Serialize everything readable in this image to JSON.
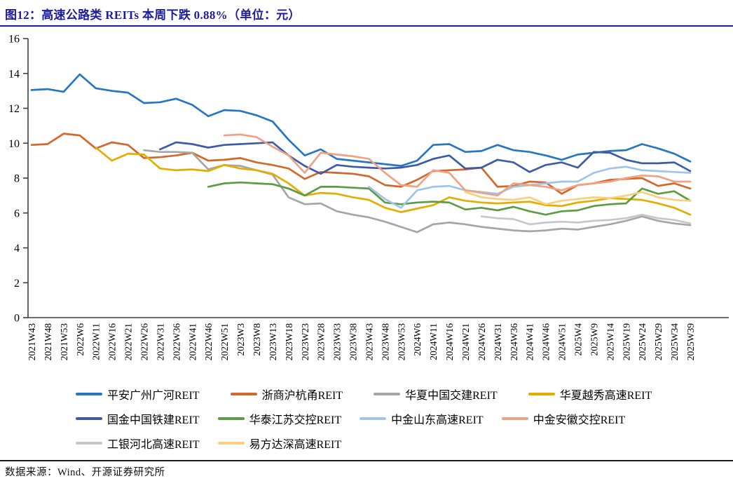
{
  "figure": {
    "title": "图12：高速公路类 REITs 本周下跌 0.88%（单位：元）",
    "source": "数据来源：Wind、开源证券研究所"
  },
  "colors": {
    "title_accent": "#1c1c9e",
    "axis": "#3f3f3f",
    "footer_rule": "#1a1a1a"
  },
  "chart_data": {
    "type": "line",
    "title": "高速公路类REITs周收盘价",
    "unit": "元",
    "ylim": [
      0,
      16
    ],
    "ytick_step": 2,
    "grid": false,
    "legend_position": "bottom",
    "legend_rows": [
      [
        0,
        1,
        2,
        3
      ],
      [
        4,
        5,
        6,
        7
      ],
      [
        8,
        9
      ]
    ],
    "categories": [
      "2021W43",
      "2021W48",
      "2021W53",
      "2022W6",
      "2022W11",
      "2022W16",
      "2022W21",
      "2022W26",
      "2022W31",
      "2022W36",
      "2022W41",
      "2022W46",
      "2022W51",
      "2023W3",
      "2023W8",
      "2023W13",
      "2023W18",
      "2023W23",
      "2023W28",
      "2023W33",
      "2023W38",
      "2023W43",
      "2023W48",
      "2023W53",
      "2024W6",
      "2024W11",
      "2024W16",
      "2024W21",
      "2024W26",
      "2024W31",
      "2024W36",
      "2024W41",
      "2024W46",
      "2024W51",
      "2025W4",
      "2025W9",
      "2025W14",
      "2025W19",
      "2025W24",
      "2025W29",
      "2025W34",
      "2025W39"
    ],
    "series": [
      {
        "name": "平安广州广河REIT",
        "color": "#2577c4",
        "values": [
          13.05,
          13.1,
          12.95,
          13.95,
          13.15,
          13.0,
          12.9,
          12.3,
          12.35,
          12.55,
          12.2,
          11.55,
          11.9,
          11.85,
          11.6,
          11.25,
          10.2,
          9.3,
          9.65,
          9.1,
          9.0,
          8.9,
          8.8,
          8.7,
          9.0,
          9.9,
          9.95,
          9.5,
          9.55,
          9.9,
          9.6,
          9.5,
          9.3,
          9.05,
          9.35,
          9.45,
          9.55,
          9.6,
          9.95,
          9.7,
          9.4,
          8.95
        ]
      },
      {
        "name": "浙商沪杭甬REIT",
        "color": "#d2682a",
        "values": [
          9.9,
          9.95,
          10.55,
          10.45,
          9.7,
          10.05,
          9.9,
          9.15,
          9.2,
          9.3,
          9.45,
          9.0,
          9.05,
          9.15,
          8.9,
          8.75,
          8.55,
          7.95,
          8.35,
          8.3,
          8.25,
          8.1,
          7.6,
          7.5,
          7.9,
          8.4,
          8.45,
          8.5,
          8.6,
          7.5,
          7.55,
          7.8,
          7.75,
          7.1,
          7.6,
          7.7,
          7.9,
          7.95,
          8.0,
          7.55,
          7.7,
          7.4
        ]
      },
      {
        "name": "华夏中国交建REIT",
        "color": "#a6a6a6",
        "values": [
          null,
          null,
          null,
          null,
          null,
          null,
          null,
          9.6,
          9.5,
          9.5,
          9.45,
          8.5,
          8.75,
          8.7,
          8.45,
          8.2,
          6.9,
          6.5,
          6.55,
          6.1,
          5.9,
          5.75,
          5.5,
          5.2,
          4.9,
          5.35,
          5.45,
          5.35,
          5.2,
          5.1,
          5.0,
          4.95,
          5.0,
          5.1,
          5.05,
          5.2,
          5.35,
          5.55,
          5.8,
          5.55,
          5.4,
          5.3
        ]
      },
      {
        "name": "华夏越秀高速REIT",
        "color": "#e3ae00",
        "values": [
          null,
          null,
          null,
          null,
          9.75,
          9.0,
          9.4,
          9.35,
          8.55,
          8.45,
          8.5,
          8.4,
          8.75,
          8.55,
          8.45,
          8.25,
          7.7,
          7.0,
          7.15,
          7.1,
          6.9,
          6.75,
          6.3,
          6.05,
          6.25,
          6.45,
          6.9,
          6.7,
          6.6,
          6.55,
          6.6,
          6.65,
          6.45,
          6.4,
          6.6,
          6.7,
          6.85,
          6.8,
          6.75,
          6.55,
          6.3,
          5.9
        ]
      },
      {
        "name": "国金中国铁建REIT",
        "color": "#3d5ba8",
        "values": [
          null,
          null,
          null,
          null,
          null,
          null,
          null,
          null,
          9.65,
          10.05,
          9.95,
          9.75,
          9.9,
          9.95,
          10.0,
          10.05,
          9.3,
          8.7,
          8.25,
          8.75,
          8.65,
          8.6,
          8.55,
          8.6,
          8.75,
          9.1,
          9.3,
          8.55,
          8.6,
          9.05,
          8.9,
          8.35,
          8.75,
          8.9,
          8.6,
          9.5,
          9.45,
          9.05,
          8.85,
          8.85,
          8.9,
          8.4
        ]
      },
      {
        "name": "华泰江苏交控REIT",
        "color": "#5c9c44",
        "values": [
          null,
          null,
          null,
          null,
          null,
          null,
          null,
          null,
          null,
          null,
          null,
          7.5,
          7.7,
          7.75,
          7.7,
          7.65,
          7.4,
          7.0,
          7.5,
          7.5,
          7.45,
          7.4,
          6.6,
          6.5,
          6.6,
          6.65,
          6.6,
          6.2,
          6.3,
          6.15,
          6.35,
          6.1,
          5.9,
          6.1,
          6.15,
          6.4,
          6.5,
          6.55,
          7.4,
          7.1,
          7.25,
          6.7
        ]
      },
      {
        "name": "中金山东高速REIT",
        "color": "#9fc5e8",
        "values": [
          null,
          null,
          null,
          null,
          null,
          null,
          null,
          null,
          null,
          null,
          null,
          null,
          null,
          null,
          null,
          null,
          null,
          null,
          null,
          null,
          null,
          7.5,
          6.8,
          6.3,
          7.3,
          7.5,
          7.55,
          7.3,
          7.2,
          7.1,
          7.5,
          7.6,
          7.7,
          7.8,
          7.8,
          8.3,
          8.55,
          8.65,
          8.45,
          8.4,
          8.35,
          8.3
        ]
      },
      {
        "name": "中金安徽交控REIT",
        "color": "#f0a285",
        "values": [
          null,
          null,
          null,
          null,
          null,
          null,
          null,
          null,
          null,
          null,
          null,
          null,
          10.45,
          10.5,
          10.35,
          9.8,
          9.3,
          8.3,
          9.45,
          9.35,
          9.25,
          9.1,
          8.3,
          7.6,
          7.5,
          8.45,
          8.3,
          7.3,
          7.15,
          7.0,
          7.7,
          7.6,
          7.5,
          7.3,
          7.6,
          7.7,
          7.8,
          8.0,
          8.15,
          8.1,
          7.8,
          7.8
        ]
      },
      {
        "name": "工银河北高速REIT",
        "color": "#c7c7c7",
        "values": [
          null,
          null,
          null,
          null,
          null,
          null,
          null,
          null,
          null,
          null,
          null,
          null,
          null,
          null,
          null,
          null,
          null,
          null,
          null,
          null,
          null,
          null,
          null,
          null,
          null,
          null,
          null,
          null,
          5.8,
          5.7,
          5.65,
          5.35,
          5.45,
          5.5,
          5.45,
          5.55,
          5.6,
          5.7,
          5.9,
          5.7,
          5.6,
          5.4
        ]
      },
      {
        "name": "易方达深高速REIT",
        "color": "#fbcf7e",
        "values": [
          null,
          null,
          null,
          null,
          null,
          null,
          null,
          null,
          null,
          null,
          null,
          null,
          null,
          null,
          null,
          null,
          null,
          null,
          null,
          null,
          null,
          null,
          null,
          null,
          null,
          null,
          null,
          7.2,
          6.9,
          6.8,
          6.75,
          6.9,
          6.5,
          6.7,
          6.8,
          6.9,
          6.85,
          7.0,
          7.2,
          6.9,
          6.75,
          6.7
        ]
      }
    ]
  }
}
